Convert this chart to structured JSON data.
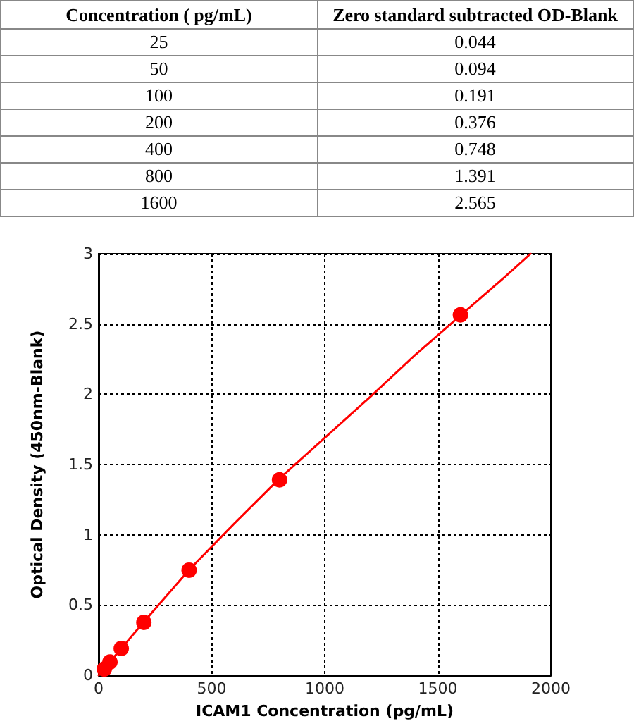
{
  "chart_data": [
    {
      "type": "other",
      "annotations": [
        "Concentration ( pg/mL)",
        "Zero standard subtracted OD-Blank",
        "25",
        "0.044",
        "50",
        "0.094",
        "100",
        "0.191",
        "200",
        "0.376",
        "400",
        "0.748",
        "800",
        "1.391",
        "1600",
        "2.565"
      ]
    },
    {
      "type": "scatter",
      "xlabel": "ICAM1 Concentration (pg/mL)",
      "ylabel": "Optical Density (450nm-Blank)",
      "series": [
        {
          "color": "#ff0000",
          "marker": "circle",
          "x": [
            25,
            50,
            100,
            200,
            400,
            800,
            1600
          ],
          "values": [
            0.044,
            0.094,
            0.191,
            0.376,
            0.748,
            1.391,
            2.565
          ]
        },
        {
          "type": "line",
          "color": "#ff0000",
          "marker": "none",
          "x": [
            0,
            200,
            400,
            600,
            800,
            1000,
            1200,
            1400,
            1600,
            1800,
            1910
          ],
          "values": [
            0.0,
            0.38,
            0.75,
            1.08,
            1.4,
            1.69,
            1.98,
            2.28,
            2.56,
            2.84,
            3.0
          ]
        }
      ],
      "xlim": [
        0,
        2000
      ],
      "xticks": [
        0,
        500,
        1000,
        1500,
        2000
      ],
      "ylim": [
        0,
        3
      ],
      "yticks": [
        0,
        0.5,
        1,
        1.5,
        2,
        2.5,
        3
      ],
      "grid": true
    }
  ]
}
